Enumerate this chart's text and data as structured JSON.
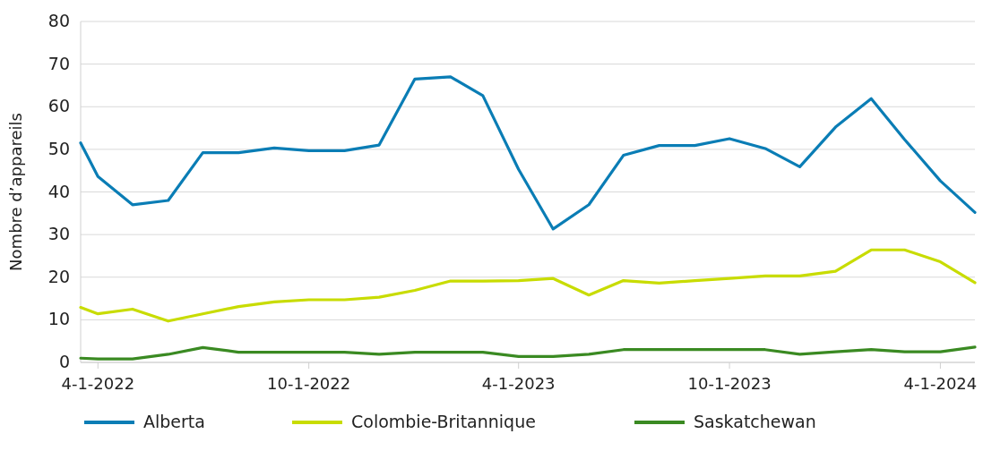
{
  "chart_data": {
    "type": "line",
    "ylabel": "Nombre d’appareils",
    "x": [
      "2022-03-17",
      "2022-04-01",
      "2022-05-01",
      "2022-06-01",
      "2022-07-01",
      "2022-08-01",
      "2022-09-01",
      "2022-10-01",
      "2022-11-01",
      "2022-12-01",
      "2023-01-01",
      "2023-02-01",
      "2023-03-01",
      "2023-04-01",
      "2023-05-01",
      "2023-06-01",
      "2023-07-01",
      "2023-08-01",
      "2023-09-01",
      "2023-10-01",
      "2023-11-01",
      "2023-12-01",
      "2024-01-01",
      "2024-02-01",
      "2024-03-01",
      "2024-04-01",
      "2024-05-01"
    ],
    "series": [
      {
        "name": "Alberta",
        "color": "#0a7db5",
        "values": [
          51.5,
          43.6,
          37,
          38,
          49.2,
          49.2,
          50.3,
          49.7,
          49.7,
          51,
          66.5,
          67,
          62.6,
          45.3,
          31.3,
          37,
          48.6,
          50.9,
          50.9,
          52.5,
          50.2,
          45.9,
          55.2,
          61.9,
          52.3,
          42.6,
          35.2
        ]
      },
      {
        "name": "Colombie-Britannique",
        "color": "#c8dc00",
        "values": [
          12.9,
          11.4,
          12.5,
          9.7,
          11.4,
          13.1,
          14.2,
          14.7,
          14.7,
          15.3,
          16.9,
          19.1,
          19.1,
          19.2,
          19.7,
          15.8,
          19.2,
          18.6,
          19.2,
          19.7,
          20.3,
          20.3,
          21.4,
          26.4,
          26.4,
          23.6,
          18.7
        ]
      },
      {
        "name": "Saskatchewan",
        "color": "#3a8a22",
        "values": [
          1.0,
          0.8,
          0.8,
          1.9,
          3.5,
          2.4,
          2.4,
          2.4,
          2.4,
          1.9,
          2.4,
          2.4,
          2.4,
          1.4,
          1.4,
          1.9,
          3.0,
          3.0,
          3.0,
          3.0,
          3.0,
          1.9,
          2.5,
          3.0,
          2.5,
          2.5,
          3.6
        ]
      }
    ],
    "xlim": [
      "2022-03-17",
      "2024-05-01"
    ],
    "xticks": [
      {
        "value": "2022-04-01",
        "label": "4-1-2022"
      },
      {
        "value": "2022-10-01",
        "label": "10-1-2022"
      },
      {
        "value": "2023-04-01",
        "label": "4-1-2023"
      },
      {
        "value": "2023-10-01",
        "label": "10-1-2023"
      },
      {
        "value": "2024-04-01",
        "label": "4-1-2024"
      }
    ],
    "ylim": [
      0,
      80
    ],
    "yticks": [
      0,
      10,
      20,
      30,
      40,
      50,
      60,
      70,
      80
    ],
    "grid": "y",
    "legend": "bottom",
    "marker": "none",
    "line_style": "solid"
  }
}
